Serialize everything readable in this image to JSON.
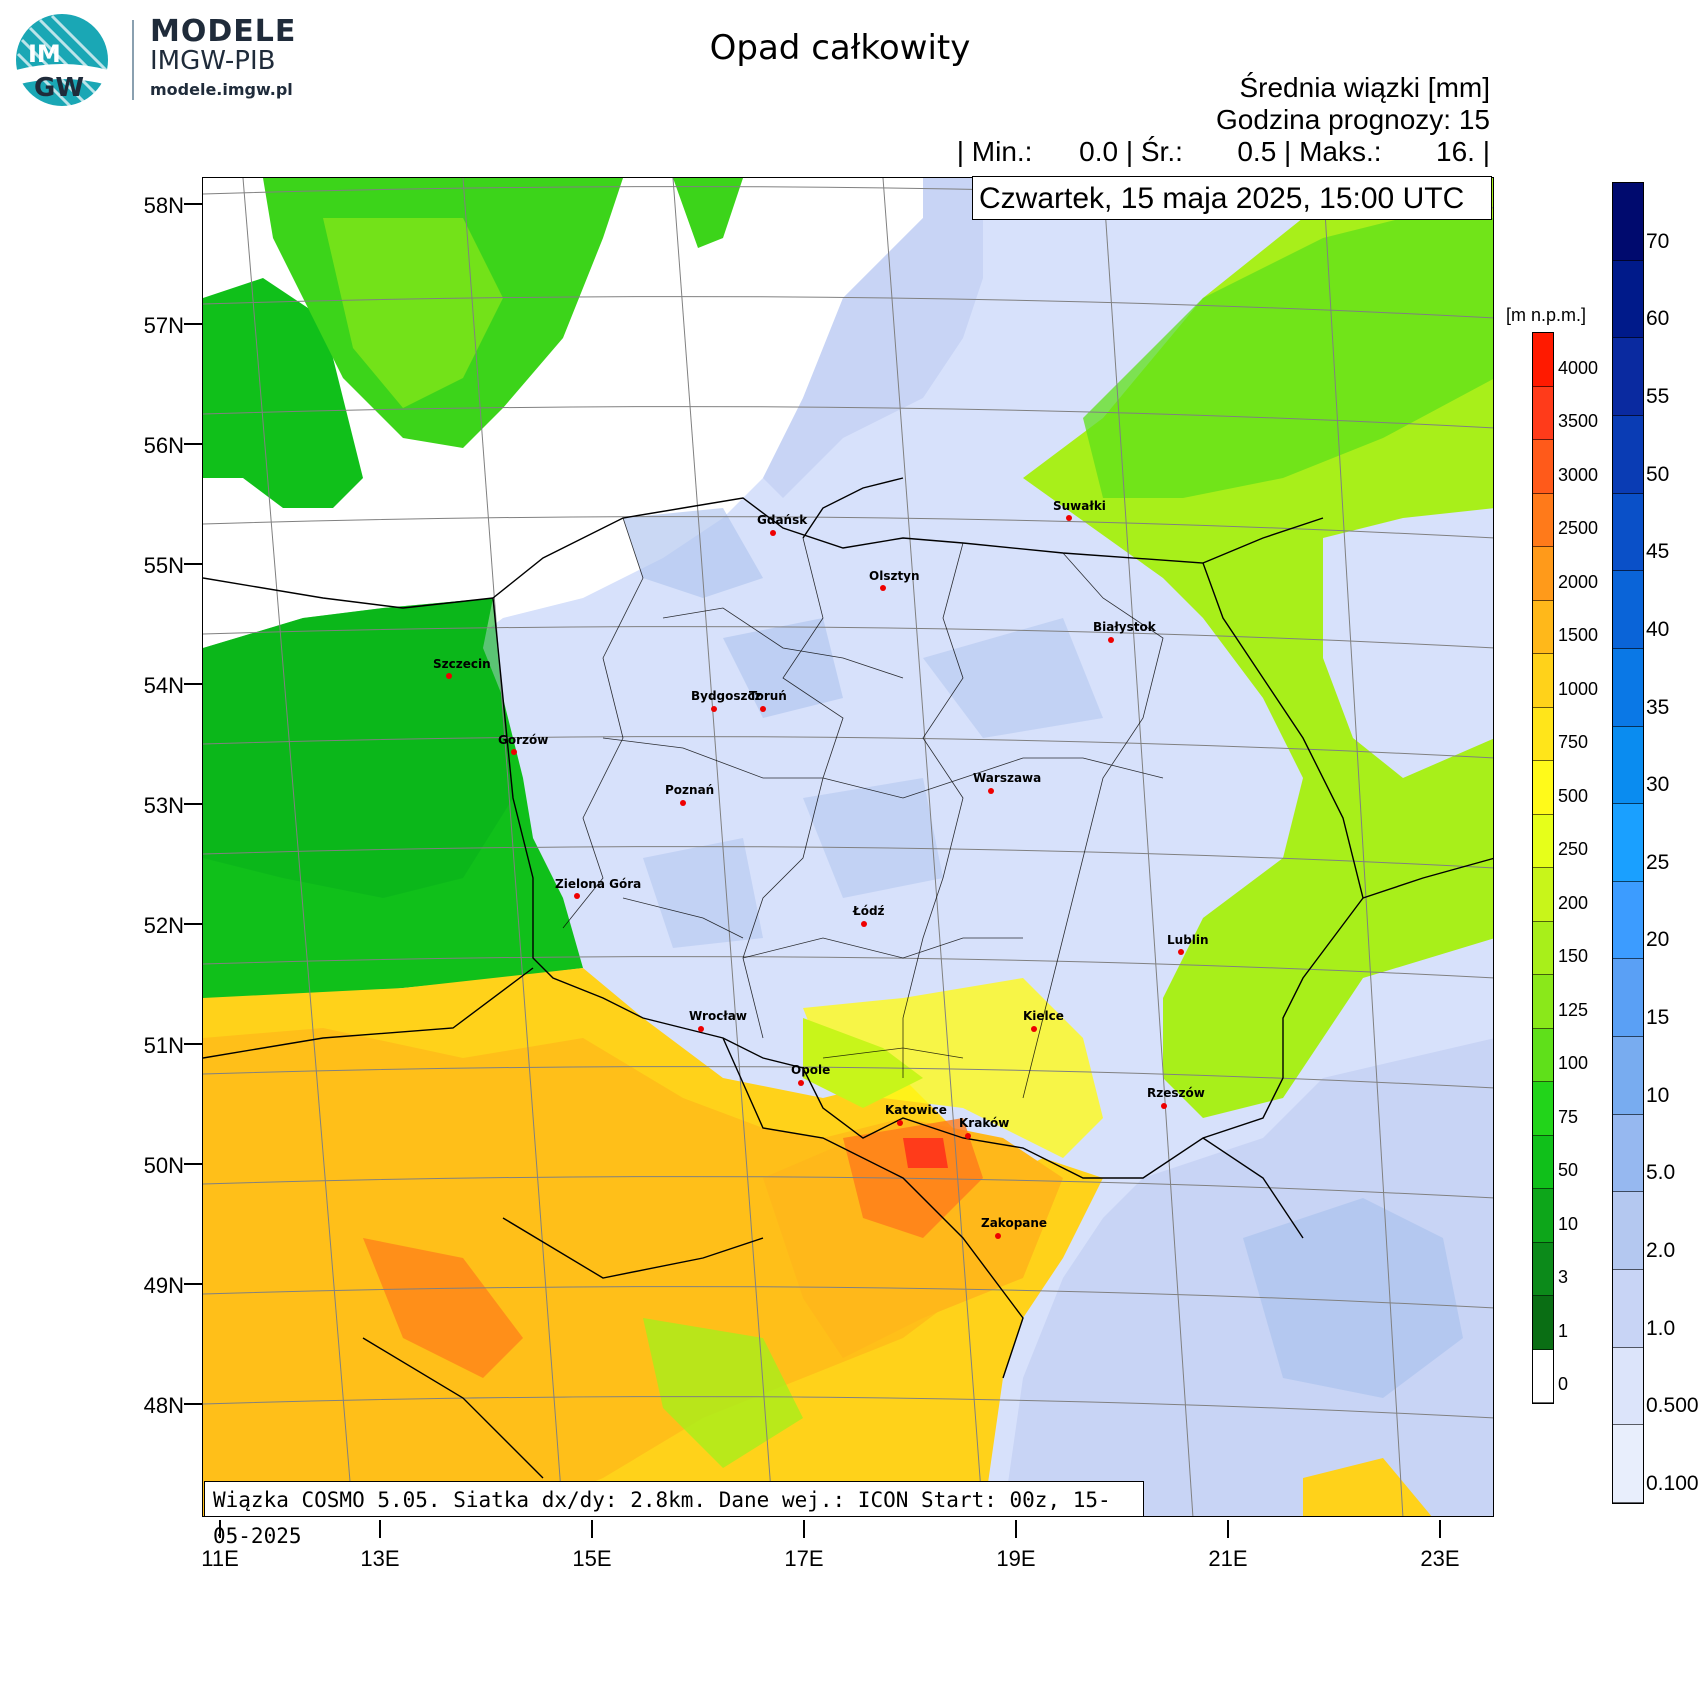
{
  "brand": {
    "logo_text_top": "IM",
    "logo_text_bottom": "GW",
    "name": "MODELE",
    "org": "IMGW-PIB",
    "url": "modele.imgw.pl"
  },
  "title": "Opad całkowity",
  "info": {
    "line1": "Średnia wiązki [mm]",
    "line2": "Godzina prognozy: 15",
    "line3": "| Min.:      0.0 | Śr.:       0.5 | Maks.:       16. |",
    "datetime": "Czwartek, 15 maja 2025, 15:00 UTC"
  },
  "footer": "Wiązka COSMO 5.05. Siatka dx/dy: 2.8km. Dane wej.: ICON Start: 00z, 15-05-2025",
  "axes": {
    "lat_labels": [
      "58N",
      "57N",
      "56N",
      "55N",
      "54N",
      "53N",
      "52N",
      "51N",
      "50N",
      "49N",
      "48N"
    ],
    "lon_labels": [
      "11E",
      "13E",
      "15E",
      "17E",
      "19E",
      "21E",
      "23E"
    ]
  },
  "cities": [
    {
      "name": "Gdańsk"
    },
    {
      "name": "Olsztyn"
    },
    {
      "name": "Suwałki"
    },
    {
      "name": "Białystok"
    },
    {
      "name": "Szczecin"
    },
    {
      "name": "Bydgoszcz"
    },
    {
      "name": "Toruń"
    },
    {
      "name": "Gorzów"
    },
    {
      "name": "Poznań"
    },
    {
      "name": "Warszawa"
    },
    {
      "name": "Zielona Góra"
    },
    {
      "name": "Łódź"
    },
    {
      "name": "Lublin"
    },
    {
      "name": "Wrocław"
    },
    {
      "name": "Kielce"
    },
    {
      "name": "Opole"
    },
    {
      "name": "Rzeszów"
    },
    {
      "name": "Katowice"
    },
    {
      "name": "Kraków"
    },
    {
      "name": "Zakopane"
    }
  ],
  "elevation_scale": {
    "unit": "[m n.p.m.]",
    "labels": [
      "4000",
      "3500",
      "3000",
      "2500",
      "2000",
      "1500",
      "1000",
      "750",
      "500",
      "250",
      "200",
      "150",
      "125",
      "100",
      "75",
      "50",
      "10",
      "3",
      "1",
      "0"
    ],
    "colors": [
      "#ff1a00",
      "#ff3b1a",
      "#ff5a1a",
      "#ff7a1a",
      "#ff9a1a",
      "#ffb81a",
      "#ffd21a",
      "#ffe51a",
      "#fffa1a",
      "#e6ff1a",
      "#c8f51a",
      "#a8ef1a",
      "#8ae81a",
      "#5fe01a",
      "#22d41a",
      "#10c01a",
      "#0da61a",
      "#0c8a1a",
      "#0a6e14",
      "#ffffff"
    ]
  },
  "precip_scale": {
    "labels": [
      "70",
      "60",
      "55",
      "50",
      "45",
      "40",
      "35",
      "30",
      "25",
      "20",
      "15",
      "10",
      "5.0",
      "2.0",
      "1.0",
      "0.500",
      "0.100"
    ],
    "colors": [
      "#000a6e",
      "#001a8a",
      "#0a2aa0",
      "#0a3cb4",
      "#0a50c8",
      "#0a64d8",
      "#0a78e6",
      "#0a8cf0",
      "#1aa0ff",
      "#3c9cff",
      "#5aa0f5",
      "#78acf0",
      "#96b8f0",
      "#b4c8f0",
      "#c8d4f5",
      "#dce4fa",
      "#e8eefc"
    ]
  },
  "colors": {
    "land_low": "#d7e1fb",
    "sea": "#ffffff"
  }
}
